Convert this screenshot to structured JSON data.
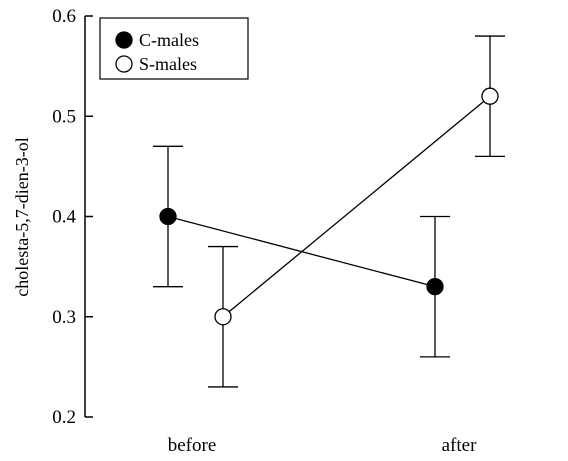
{
  "chart_data": {
    "type": "line",
    "title": "",
    "xlabel": "",
    "ylabel": "cholesta-5,7-dien-3-ol",
    "categories": [
      "before",
      "after"
    ],
    "ylim": [
      0.2,
      0.6
    ],
    "yticks": [
      "0.2",
      "0.3",
      "0.4",
      "0.5",
      "0.6"
    ],
    "grid": false,
    "legend_position": "top-left",
    "series": [
      {
        "name": "C-males",
        "marker": "filled-circle",
        "color": "#000000",
        "values": [
          0.4,
          0.33
        ],
        "error_low": [
          0.33,
          0.26
        ],
        "error_high": [
          0.47,
          0.4
        ]
      },
      {
        "name": "S-males",
        "marker": "open-circle",
        "color": "#000000",
        "values": [
          0.3,
          0.52
        ],
        "error_low": [
          0.23,
          0.46
        ],
        "error_high": [
          0.37,
          0.58
        ]
      }
    ]
  }
}
